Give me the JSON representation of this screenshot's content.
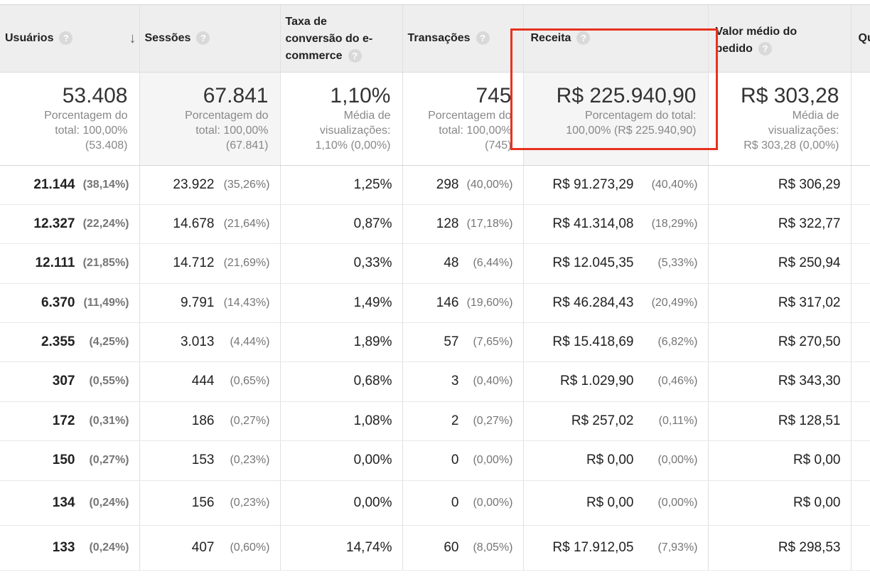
{
  "columns": [
    {
      "label": "Usuários",
      "sorted": true
    },
    {
      "label": "Sessões"
    },
    {
      "label": "Taxa de conversão do e-commerce",
      "lines": [
        "Taxa de",
        "conversão do e-",
        "commerce"
      ]
    },
    {
      "label": "Transações"
    },
    {
      "label": "Receita"
    },
    {
      "label": "Valor médio do pedido",
      "lines": [
        "Valor médio do",
        "pedido"
      ]
    },
    {
      "label": "Qu"
    }
  ],
  "help_glyph": "?",
  "sort_glyph": "↓",
  "totals": [
    {
      "value": "53.408",
      "lines": [
        "Porcentagem do",
        "total: 100,00%",
        "(53.408)"
      ]
    },
    {
      "value": "67.841",
      "lines": [
        "Porcentagem do",
        "total: 100,00%",
        "(67.841)"
      ]
    },
    {
      "value": "1,10%",
      "lines": [
        "Média de",
        "visualizações:",
        "1,10% (0,00%)"
      ]
    },
    {
      "value": "745",
      "lines": [
        "Porcentagem do",
        "total: 100,00%",
        "(745)"
      ]
    },
    {
      "value": "R$ 225.940,90",
      "lines": [
        "Porcentagem do total:",
        "100,00% (R$ 225.940,90)"
      ]
    },
    {
      "value": "R$ 303,28",
      "lines": [
        "Média de",
        "visualizações:",
        "R$ 303,28 (0,00%)"
      ]
    }
  ],
  "rows": [
    {
      "usuarios": "21.144",
      "usuarios_pct": "(38,14%)",
      "sessoes": "23.922",
      "sessoes_pct": "(35,26%)",
      "taxa": "1,25%",
      "transacoes": "298",
      "transacoes_pct": "(40,00%)",
      "receita": "R$ 91.273,29",
      "receita_pct": "(40,40%)",
      "valor": "R$ 306,29"
    },
    {
      "usuarios": "12.327",
      "usuarios_pct": "(22,24%)",
      "sessoes": "14.678",
      "sessoes_pct": "(21,64%)",
      "taxa": "0,87%",
      "transacoes": "128",
      "transacoes_pct": "(17,18%)",
      "receita": "R$ 41.314,08",
      "receita_pct": "(18,29%)",
      "valor": "R$ 322,77"
    },
    {
      "usuarios": "12.111",
      "usuarios_pct": "(21,85%)",
      "sessoes": "14.712",
      "sessoes_pct": "(21,69%)",
      "taxa": "0,33%",
      "transacoes": "48",
      "transacoes_pct": "(6,44%)",
      "receita": "R$ 12.045,35",
      "receita_pct": "(5,33%)",
      "valor": "R$ 250,94"
    },
    {
      "usuarios": "6.370",
      "usuarios_pct": "(11,49%)",
      "sessoes": "9.791",
      "sessoes_pct": "(14,43%)",
      "taxa": "1,49%",
      "transacoes": "146",
      "transacoes_pct": "(19,60%)",
      "receita": "R$ 46.284,43",
      "receita_pct": "(20,49%)",
      "valor": "R$ 317,02"
    },
    {
      "usuarios": "2.355",
      "usuarios_pct": "(4,25%)",
      "sessoes": "3.013",
      "sessoes_pct": "(4,44%)",
      "taxa": "1,89%",
      "transacoes": "57",
      "transacoes_pct": "(7,65%)",
      "receita": "R$ 15.418,69",
      "receita_pct": "(6,82%)",
      "valor": "R$ 270,50"
    },
    {
      "usuarios": "307",
      "usuarios_pct": "(0,55%)",
      "sessoes": "444",
      "sessoes_pct": "(0,65%)",
      "taxa": "0,68%",
      "transacoes": "3",
      "transacoes_pct": "(0,40%)",
      "receita": "R$ 1.029,90",
      "receita_pct": "(0,46%)",
      "valor": "R$ 343,30"
    },
    {
      "usuarios": "172",
      "usuarios_pct": "(0,31%)",
      "sessoes": "186",
      "sessoes_pct": "(0,27%)",
      "taxa": "1,08%",
      "transacoes": "2",
      "transacoes_pct": "(0,27%)",
      "receita": "R$ 257,02",
      "receita_pct": "(0,11%)",
      "valor": "R$ 128,51"
    },
    {
      "usuarios": "150",
      "usuarios_pct": "(0,27%)",
      "sessoes": "153",
      "sessoes_pct": "(0,23%)",
      "taxa": "0,00%",
      "transacoes": "0",
      "transacoes_pct": "(0,00%)",
      "receita": "R$ 0,00",
      "receita_pct": "(0,00%)",
      "valor": "R$ 0,00"
    },
    {
      "usuarios": "134",
      "usuarios_pct": "(0,24%)",
      "sessoes": "156",
      "sessoes_pct": "(0,23%)",
      "taxa": "0,00%",
      "transacoes": "0",
      "transacoes_pct": "(0,00%)",
      "receita": "R$ 0,00",
      "receita_pct": "(0,00%)",
      "valor": "R$ 0,00"
    },
    {
      "usuarios": "133",
      "usuarios_pct": "(0,24%)",
      "sessoes": "407",
      "sessoes_pct": "(0,60%)",
      "taxa": "14,74%",
      "transacoes": "60",
      "transacoes_pct": "(8,05%)",
      "receita": "R$ 17.912,05",
      "receita_pct": "(7,93%)",
      "valor": "R$ 298,53"
    }
  ],
  "colors": {
    "highlight": "#e8321f",
    "header_bg": "#eeeeee"
  }
}
